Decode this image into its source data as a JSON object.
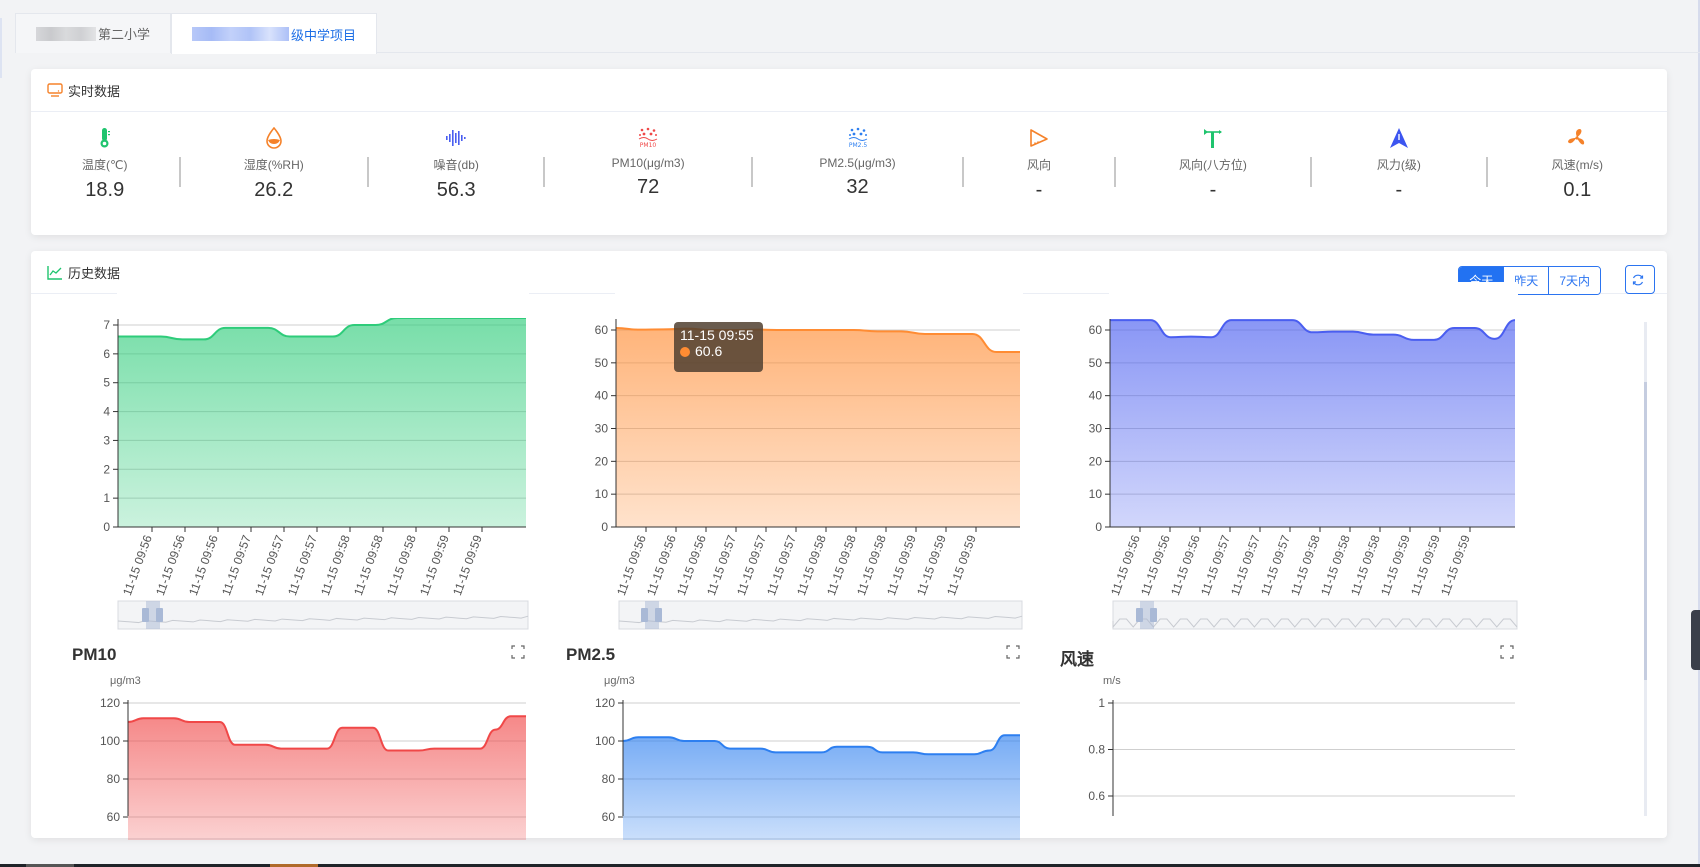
{
  "tabs": [
    {
      "label_visible": "第二小学",
      "active": false
    },
    {
      "label_visible": "级中学项目",
      "active": true
    }
  ],
  "realtime": {
    "title": "实时数据",
    "items": [
      {
        "icon": "thermometer-icon",
        "label": "温度(℃)",
        "value": "18.9",
        "color": "#1fc46e"
      },
      {
        "icon": "water-drop-icon",
        "label": "湿度(%RH)",
        "value": "26.2",
        "color": "#f5822a"
      },
      {
        "icon": "sound-wave-icon",
        "label": "噪音(db)",
        "value": "56.3",
        "color": "#4a5ef0"
      },
      {
        "icon": "pm10-icon",
        "label": "PM10(μg/m3)",
        "value": "72",
        "color": "#f04848"
      },
      {
        "icon": "pm25-icon",
        "label": "PM2.5(μg/m3)",
        "value": "32",
        "color": "#2d7ff0"
      },
      {
        "icon": "wind-direction-icon",
        "label": "风向",
        "value": "-",
        "color": "#f5822a"
      },
      {
        "icon": "wind-vane-icon",
        "label": "风向(八方位)",
        "value": "-",
        "color": "#1fc46e"
      },
      {
        "icon": "navigation-arrow-icon",
        "label": "风力(级)",
        "value": "-",
        "color": "#3c55f0"
      },
      {
        "icon": "fan-icon",
        "label": "风速(m/s)",
        "value": "0.1",
        "color": "#f5822a"
      }
    ]
  },
  "history": {
    "title": "历史数据",
    "range_buttons": [
      "今天",
      "昨天",
      "7天内"
    ],
    "active_range": "今天",
    "refresh_icon": "refresh-icon"
  },
  "tooltip": {
    "time": "11-15 09:55",
    "value": "60.6"
  },
  "chart_data": [
    {
      "type": "area",
      "title": "",
      "unit": "",
      "color": "#2ecc7a",
      "y_ticks": [
        0,
        1,
        2,
        3,
        4,
        5,
        6,
        7
      ],
      "ylim": [
        0,
        7
      ],
      "x_labels": [
        "11-15 09:56",
        "11-15 09:56",
        "11-15 09:56",
        "11-15 09:57",
        "11-15 09:57",
        "11-15 09:57",
        "11-15 09:58",
        "11-15 09:58",
        "11-15 09:58",
        "11-15 09:59",
        "11-15 09:59"
      ],
      "values": [
        6.6,
        6.6,
        6.6,
        6.5,
        6.5,
        6.9,
        6.9,
        6.9,
        6.6,
        6.6,
        6.6,
        7.0,
        7.0,
        7.3,
        7.3,
        7.3,
        7.3,
        7.3,
        7.3,
        7.3
      ]
    },
    {
      "type": "area",
      "title": "",
      "unit": "",
      "color": "#ff8c33",
      "y_ticks": [
        0,
        10,
        20,
        30,
        40,
        50,
        60
      ],
      "ylim": [
        0,
        62
      ],
      "x_labels": [
        "11-15 09:56",
        "11-15 09:56",
        "11-15 09:56",
        "11-15 09:57",
        "11-15 09:57",
        "11-15 09:57",
        "11-15 09:58",
        "11-15 09:58",
        "11-15 09:58",
        "11-15 09:59",
        "11-15 09:59",
        "11-15 09:59"
      ],
      "values": [
        60.6,
        60.1,
        60.2,
        60.4,
        60.0,
        60.0,
        60.1,
        60.0,
        60.0,
        60.0,
        60.0,
        59.6,
        59.6,
        58.8,
        58.8,
        58.8,
        53.3,
        53.3
      ]
    },
    {
      "type": "area",
      "title": "",
      "unit": "",
      "color": "#4a5ef0",
      "y_ticks": [
        0,
        10,
        20,
        30,
        40,
        50,
        60
      ],
      "ylim": [
        0,
        62
      ],
      "x_labels": [
        "11-15 09:56",
        "11-15 09:56",
        "11-15 09:56",
        "11-15 09:57",
        "11-15 09:57",
        "11-15 09:57",
        "11-15 09:58",
        "11-15 09:58",
        "11-15 09:58",
        "11-15 09:59",
        "11-15 09:59",
        "11-15 09:59"
      ],
      "values": [
        63,
        63,
        63,
        57.8,
        58,
        57.8,
        63,
        63,
        63,
        63,
        59.3,
        59.5,
        59.5,
        58.6,
        58.6,
        57.0,
        57.0,
        60.6,
        60.6,
        57.3,
        63
      ]
    },
    {
      "type": "area",
      "title": "PM10",
      "unit": "μg/m3",
      "color": "#f04848",
      "y_ticks": [
        60,
        80,
        100,
        120
      ],
      "ylim": [
        60,
        120
      ],
      "values": [
        110,
        112,
        112,
        112,
        110,
        110,
        110,
        98,
        98,
        98,
        96,
        96,
        96,
        96,
        107,
        107,
        107,
        95,
        95,
        95,
        96,
        96,
        96,
        96,
        106,
        113,
        113
      ]
    },
    {
      "type": "area",
      "title": "PM2.5",
      "unit": "μg/m3",
      "color": "#2d7ff0",
      "y_ticks": [
        60,
        80,
        100,
        120
      ],
      "ylim": [
        60,
        120
      ],
      "values": [
        100,
        102,
        102,
        102,
        100,
        100,
        100,
        96,
        96,
        96,
        94,
        94,
        94,
        94,
        97,
        97,
        97,
        94,
        94,
        94,
        93,
        93,
        93,
        93,
        95,
        103,
        103
      ]
    },
    {
      "type": "line",
      "title": "风速",
      "unit": "m/s",
      "color": "#3c55f0",
      "y_ticks": [
        0.6,
        0.8,
        1
      ],
      "ylim": [
        0.5,
        1
      ],
      "values": []
    }
  ]
}
